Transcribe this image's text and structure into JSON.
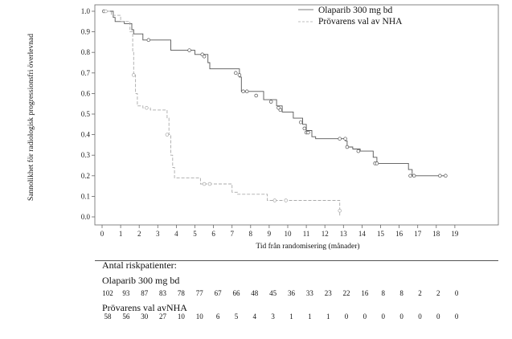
{
  "chart_data": {
    "type": "line",
    "subtype": "kaplan-meier",
    "title": "",
    "xlabel": "Tid från randomisering (månader)",
    "ylabel": "Sannolikhet för radiologisk progressionsfri överlevnad",
    "xlim": [
      0,
      19
    ],
    "ylim": [
      0,
      1.0
    ],
    "x_ticks": [
      0,
      1,
      2,
      3,
      4,
      5,
      6,
      7,
      8,
      9,
      10,
      11,
      12,
      13,
      14,
      15,
      16,
      17,
      18,
      19
    ],
    "y_ticks": [
      "0.0",
      "0.1",
      "0.2",
      "0.3",
      "0.4",
      "0.5",
      "0.6",
      "0.7",
      "0.8",
      "0.9",
      "1.0"
    ],
    "legend_position": "top-right",
    "series": [
      {
        "name": "Olaparib 300 mg bd",
        "color": "#555555",
        "dashed": false,
        "steps": [
          [
            0,
            1.0
          ],
          [
            0.6,
            0.97
          ],
          [
            0.7,
            0.95
          ],
          [
            1.2,
            0.94
          ],
          [
            1.6,
            0.91
          ],
          [
            1.7,
            0.89
          ],
          [
            2.2,
            0.86
          ],
          [
            3.7,
            0.81
          ],
          [
            5.0,
            0.79
          ],
          [
            5.7,
            0.75
          ],
          [
            5.8,
            0.72
          ],
          [
            7.4,
            0.68
          ],
          [
            7.5,
            0.61
          ],
          [
            8.7,
            0.57
          ],
          [
            9.4,
            0.54
          ],
          [
            9.7,
            0.51
          ],
          [
            10.3,
            0.48
          ],
          [
            10.8,
            0.45
          ],
          [
            11.0,
            0.42
          ],
          [
            11.3,
            0.39
          ],
          [
            11.5,
            0.38
          ],
          [
            13.1,
            0.37
          ],
          [
            13.2,
            0.34
          ],
          [
            13.5,
            0.33
          ],
          [
            13.9,
            0.32
          ],
          [
            14.6,
            0.29
          ],
          [
            14.8,
            0.26
          ],
          [
            16.5,
            0.23
          ],
          [
            16.7,
            0.2
          ],
          [
            18.5,
            0.2
          ]
        ],
        "censors": [
          [
            0.1,
            1.0
          ],
          [
            2.5,
            0.86
          ],
          [
            4.7,
            0.81
          ],
          [
            5.4,
            0.79
          ],
          [
            5.5,
            0.78
          ],
          [
            7.2,
            0.7
          ],
          [
            7.4,
            0.69
          ],
          [
            7.6,
            0.61
          ],
          [
            7.8,
            0.61
          ],
          [
            8.3,
            0.59
          ],
          [
            9.1,
            0.56
          ],
          [
            9.5,
            0.53
          ],
          [
            9.6,
            0.52
          ],
          [
            10.7,
            0.46
          ],
          [
            10.9,
            0.43
          ],
          [
            11.0,
            0.41
          ],
          [
            11.1,
            0.41
          ],
          [
            12.8,
            0.38
          ],
          [
            13.1,
            0.38
          ],
          [
            13.2,
            0.34
          ],
          [
            13.8,
            0.32
          ],
          [
            14.7,
            0.26
          ],
          [
            14.8,
            0.26
          ],
          [
            16.6,
            0.2
          ],
          [
            16.8,
            0.2
          ],
          [
            18.2,
            0.2
          ],
          [
            18.5,
            0.2
          ]
        ]
      },
      {
        "name": "Prövarens val av NHA",
        "color": "#aaaaaa",
        "dashed": true,
        "steps": [
          [
            0,
            1.0
          ],
          [
            0.5,
            0.98
          ],
          [
            1.0,
            0.95
          ],
          [
            1.5,
            0.9
          ],
          [
            1.65,
            0.8
          ],
          [
            1.7,
            0.69
          ],
          [
            1.8,
            0.6
          ],
          [
            1.9,
            0.54
          ],
          [
            2.2,
            0.53
          ],
          [
            2.6,
            0.52
          ],
          [
            3.5,
            0.48
          ],
          [
            3.6,
            0.4
          ],
          [
            3.7,
            0.3
          ],
          [
            3.8,
            0.24
          ],
          [
            3.9,
            0.19
          ],
          [
            5.3,
            0.16
          ],
          [
            7.0,
            0.12
          ],
          [
            7.3,
            0.11
          ],
          [
            8.9,
            0.08
          ],
          [
            12.8,
            0.0
          ]
        ],
        "censors": [
          [
            0.2,
            1.0
          ],
          [
            1.7,
            0.69
          ],
          [
            2.4,
            0.53
          ],
          [
            3.5,
            0.4
          ],
          [
            5.5,
            0.16
          ],
          [
            5.8,
            0.16
          ],
          [
            9.3,
            0.08
          ],
          [
            9.9,
            0.08
          ],
          [
            12.8,
            0.03
          ]
        ]
      }
    ]
  },
  "risk_table": {
    "title": "Antal riskpatienter:",
    "groups": [
      {
        "name": "Olaparib 300 mg bd",
        "values": [
          "102",
          "93",
          "87",
          "83",
          "78",
          "77",
          "67",
          "66",
          "48",
          "45",
          "36",
          "33",
          "23",
          "22",
          "16",
          "8",
          "8",
          "2",
          "2",
          "0"
        ]
      },
      {
        "name": "Prövarens val avNHA",
        "values": [
          "58",
          "56",
          "30",
          "27",
          "10",
          "10",
          "6",
          "5",
          "4",
          "3",
          "1",
          "1",
          "1",
          "0",
          "0",
          "0",
          "0",
          "0",
          "0",
          "0"
        ]
      }
    ]
  }
}
